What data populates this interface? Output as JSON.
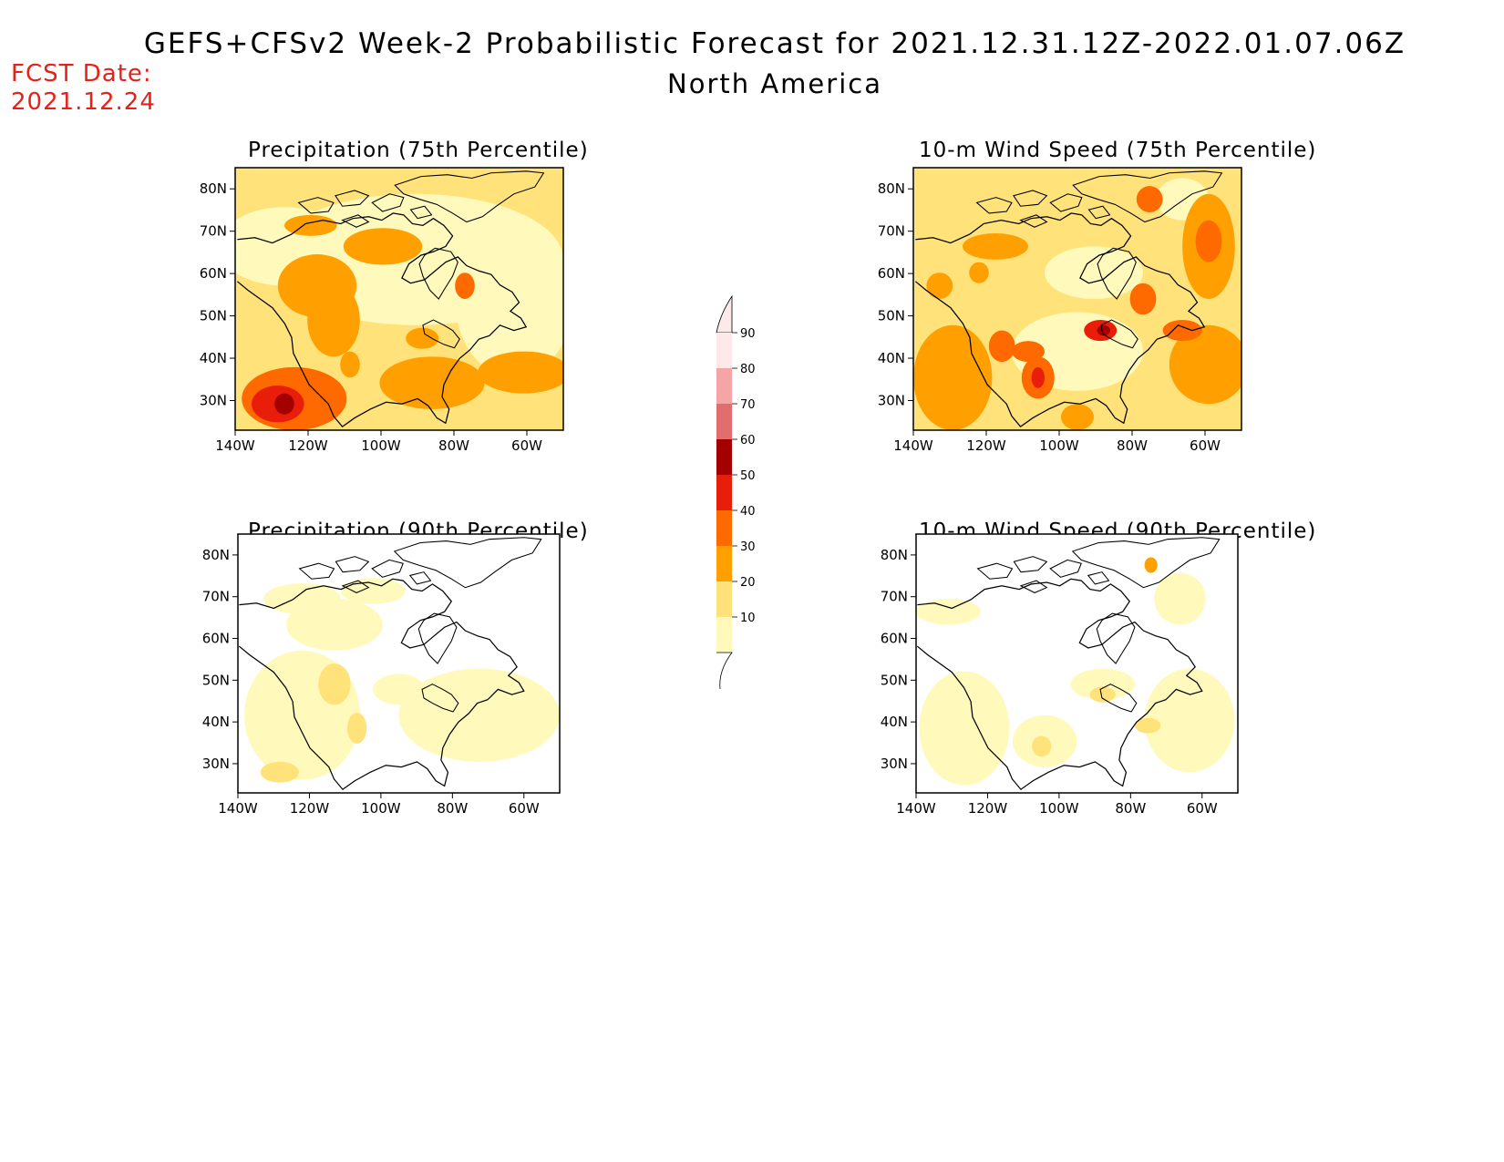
{
  "title": "GEFS+CFSv2 Week-2 Probabilistic Forecast for 2021.12.31.12Z-2022.01.07.06Z",
  "subtitle": "North America",
  "fcst_label": "FCST Date:",
  "fcst_date": "2021.12.24",
  "colors": {
    "c10": "#fffabc",
    "c20": "#ffe37a",
    "c30": "#ffa000",
    "c40": "#ff6a00",
    "c50": "#e81e0a",
    "c60": "#a50000",
    "c70": "#e06e6e",
    "c80": "#f5a5a5",
    "c90": "#fde8ea"
  },
  "colorbar": {
    "levels": [
      "10",
      "20",
      "30",
      "40",
      "50",
      "60",
      "70",
      "80",
      "90"
    ]
  },
  "axes": {
    "lon_labels": [
      "140W",
      "120W",
      "100W",
      "80W",
      "60W"
    ],
    "lat_labels": [
      "80N",
      "70N",
      "60N",
      "50N",
      "40N",
      "30N"
    ]
  },
  "panels": [
    {
      "id": "precip75",
      "title": "Precipitation (75th Percentile)"
    },
    {
      "id": "wind75",
      "title": "10-m Wind Speed (75th Percentile)"
    },
    {
      "id": "precip90",
      "title": "Precipitation (90th Percentile)"
    },
    {
      "id": "wind90",
      "title": "10-m Wind Speed (90th Percentile)"
    }
  ]
}
